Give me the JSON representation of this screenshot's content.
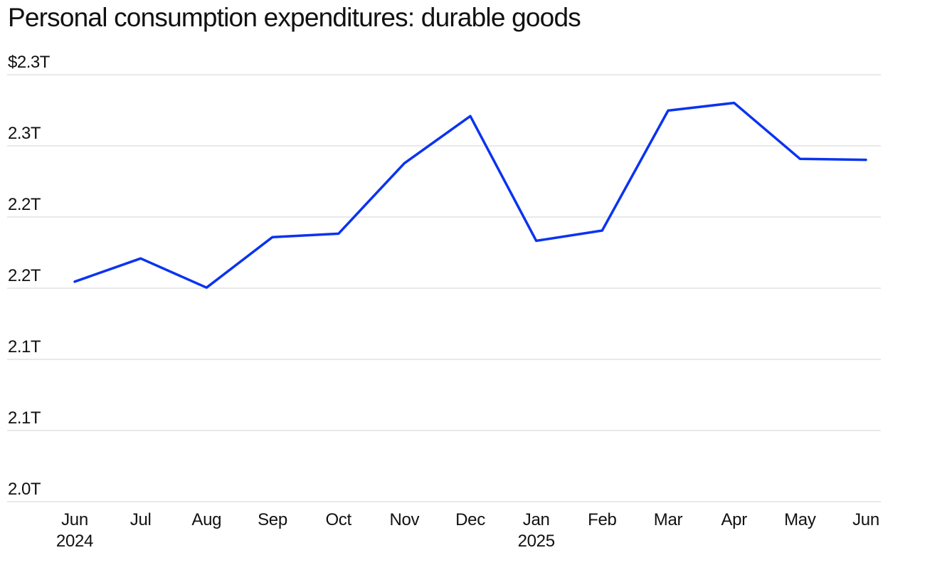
{
  "title": "Personal consumption expenditures: durable goods",
  "colors": {
    "series": "#0a33f0",
    "grid": "#dcdcdc",
    "text": "#111111"
  },
  "chart_data": {
    "type": "line",
    "title": "Personal consumption expenditures: durable goods",
    "xlabel": "",
    "ylabel": "",
    "ylim": [
      2.0,
      2.3
    ],
    "y_tick_values": [
      2.3,
      2.25,
      2.2,
      2.15,
      2.1,
      2.05,
      2.0
    ],
    "y_tick_labels": [
      "$2.3T",
      "2.3T",
      "2.2T",
      "2.2T",
      "2.1T",
      "2.1T",
      "2.0T"
    ],
    "categories": [
      "Jun",
      "Jul",
      "Aug",
      "Sep",
      "Oct",
      "Nov",
      "Dec",
      "Jan",
      "Feb",
      "Mar",
      "Apr",
      "May",
      "Jun"
    ],
    "year_labels": [
      {
        "index": 0,
        "label": "2024"
      },
      {
        "index": 7,
        "label": "2025"
      }
    ],
    "grid": true,
    "series": [
      {
        "name": "Durable goods",
        "values": [
          2.1546,
          2.1709,
          2.1504,
          2.1859,
          2.1883,
          2.2378,
          2.2709,
          2.1833,
          2.1905,
          2.2748,
          2.2802,
          2.2409,
          2.2402
        ]
      }
    ]
  }
}
